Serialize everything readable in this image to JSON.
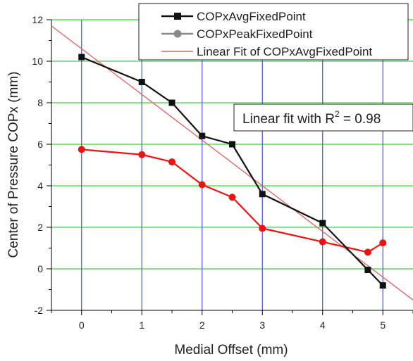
{
  "chart_data": {
    "type": "line",
    "title": "",
    "xlabel": "Medial Offset (mm)",
    "ylabel": "Center of Pressure COPx  (mm)",
    "xlim": [
      -0.5,
      5.5
    ],
    "ylim": [
      -2,
      12
    ],
    "xticks": [
      0,
      1,
      2,
      3,
      4,
      5
    ],
    "yticks": [
      -2,
      0,
      2,
      4,
      6,
      8,
      10,
      12
    ],
    "xminor": [
      -0.5,
      0.5,
      1.5,
      2.5,
      3.5,
      4.5,
      5.5
    ],
    "yminor": [
      -1,
      1,
      3,
      5,
      7,
      9,
      11
    ],
    "grid": true,
    "grid_colors": {
      "horizontal": "#33dd33",
      "vertical": "#4455cc"
    },
    "legend_position": "top-right",
    "series": [
      {
        "name": "COPxAvgFixedPoint",
        "color": "#111111",
        "marker": "square",
        "x": [
          0,
          1,
          1.5,
          2,
          2.5,
          3,
          4,
          4.75,
          5
        ],
        "y": [
          10.2,
          9.0,
          8.0,
          6.4,
          6.0,
          3.6,
          2.2,
          -0.05,
          -0.8
        ]
      },
      {
        "name": "COPxPeakFixedPoint",
        "color": "#ee1111",
        "legend_color": "#888888",
        "marker": "circle",
        "x": [
          0,
          1,
          1.5,
          2,
          2.5,
          3,
          4,
          4.75,
          5
        ],
        "y": [
          5.75,
          5.5,
          5.15,
          4.05,
          3.45,
          1.95,
          1.3,
          0.8,
          1.25
        ]
      }
    ],
    "fit": {
      "name": "Linear Fit of COPxAvgFixedPoint",
      "color": "#e06060",
      "slope": -2.2,
      "intercept": 10.6,
      "x_range": [
        -0.5,
        5.5
      ]
    },
    "annotation": {
      "text_prefix": "Linear fit with R",
      "superscript": "2",
      "text_suffix": " = 0.98"
    }
  }
}
